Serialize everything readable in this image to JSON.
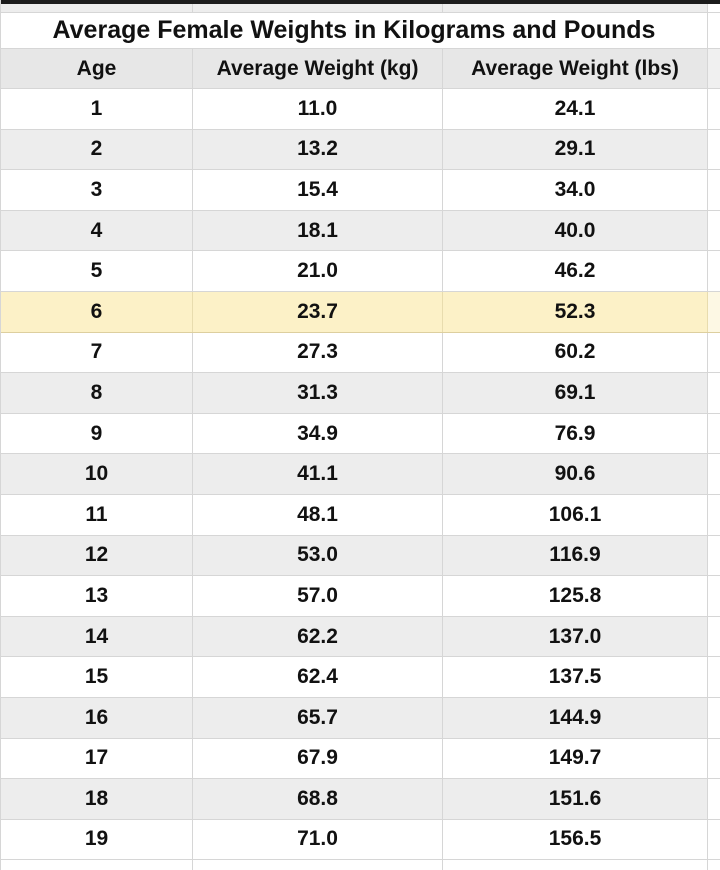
{
  "chart_data": {
    "type": "table",
    "title": "Average Female Weights in Kilograms and Pounds",
    "columns": [
      "Age",
      "Average Weight (kg)",
      "Average Weight (lbs)"
    ],
    "rows": [
      [
        1,
        11.0,
        24.1
      ],
      [
        2,
        13.2,
        29.1
      ],
      [
        3,
        15.4,
        34.0
      ],
      [
        4,
        18.1,
        40.0
      ],
      [
        5,
        21.0,
        46.2
      ],
      [
        6,
        23.7,
        52.3
      ],
      [
        7,
        27.3,
        60.2
      ],
      [
        8,
        31.3,
        69.1
      ],
      [
        9,
        34.9,
        76.9
      ],
      [
        10,
        41.1,
        90.6
      ],
      [
        11,
        48.1,
        106.1
      ],
      [
        12,
        53.0,
        116.9
      ],
      [
        13,
        57.0,
        125.8
      ],
      [
        14,
        62.2,
        137.0
      ],
      [
        15,
        62.4,
        137.5
      ],
      [
        16,
        65.7,
        144.9
      ],
      [
        17,
        67.9,
        149.7
      ],
      [
        18,
        68.8,
        151.6
      ],
      [
        19,
        71.0,
        156.5
      ]
    ],
    "value_decimals": 1,
    "highlighted_row_age": 6,
    "layout": {
      "banding": "even ages shaded gray",
      "alignment": "all cells centered"
    }
  },
  "colors": {
    "highlight": "#fcf1c7",
    "highlight_edge": "#fdf8e4",
    "highlight_border": "#ddcf9f",
    "highlight_cellborder": "#e8dcae",
    "band": "#ededed",
    "header_bg": "#e7e7e7",
    "border": "#d6d6d6",
    "top_bar": "#1c1c1c",
    "text": "#111111"
  }
}
